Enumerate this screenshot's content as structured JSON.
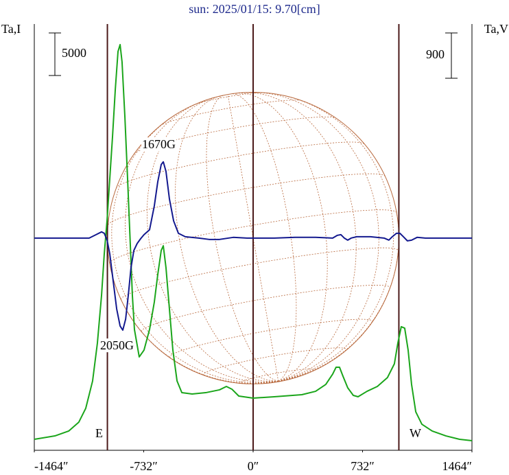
{
  "chart_data": {
    "type": "line",
    "title": "sun: 2025/01/15: 9.70[cm]",
    "y_label": "Ta,I",
    "y2_label": "Ta,V",
    "xlim": [
      -1464,
      1464
    ],
    "xticks": [
      {
        "value": -1464,
        "label": "-1464″"
      },
      {
        "value": -732,
        "label": "-732″"
      },
      {
        "value": 0,
        "label": "0″"
      },
      {
        "value": 732,
        "label": "732″"
      },
      {
        "value": 1464,
        "label": "1464″"
      }
    ],
    "ylim": [
      0,
      50000
    ],
    "y2lim": [
      -4200,
      4250
    ],
    "scale_bars": [
      {
        "value": 5000,
        "axis": "y"
      },
      {
        "value": 900,
        "axis": "y2"
      }
    ],
    "vlines": [
      {
        "x": -975,
        "label": "E"
      },
      {
        "x": 0
      },
      {
        "x": 975,
        "label": "W"
      }
    ],
    "vline_color": "#4a1818",
    "disk_color": "#b8683c",
    "annotations": [
      "1670G",
      "2050G"
    ],
    "series": [
      {
        "color": "#1aa51a",
        "axis": "y",
        "x": [
          -1464,
          -1326,
          -1234,
          -1166,
          -1120,
          -1074,
          -1042,
          -1014,
          -996,
          -977,
          -959,
          -941,
          -922,
          -904,
          -890,
          -877,
          -858,
          -840,
          -821,
          -808,
          -794,
          -762,
          -730,
          -693,
          -661,
          -638,
          -615,
          -601,
          -583,
          -560,
          -537,
          -509,
          -477,
          -408,
          -317,
          -225,
          -179,
          -142,
          -96,
          0,
          142,
          326,
          418,
          486,
          532,
          555,
          578,
          601,
          633,
          670,
          702,
          762,
          831,
          899,
          945,
          968,
          991,
          1014,
          1037,
          1060,
          1088,
          1129,
          1198,
          1290,
          1381,
          1464
        ],
        "values": [
          1210,
          1610,
          2180,
          3230,
          4840,
          8060,
          12500,
          18150,
          22980,
          27000,
          31850,
          36690,
          42340,
          46770,
          47580,
          45560,
          39110,
          31850,
          23790,
          18150,
          14110,
          10890,
          11690,
          14110,
          17340,
          20560,
          23390,
          23950,
          21370,
          16530,
          11690,
          8060,
          6690,
          6530,
          6690,
          7020,
          7420,
          7100,
          6290,
          6050,
          6210,
          6450,
          6850,
          7660,
          8870,
          9680,
          9680,
          8630,
          7260,
          6370,
          6210,
          6850,
          7420,
          8470,
          10080,
          12500,
          14440,
          14270,
          11690,
          7660,
          4440,
          2980,
          2180,
          1610,
          1210,
          1050
        ]
      },
      {
        "color": "#12188e",
        "axis": "y2",
        "x": [
          -1464,
          -1097,
          -1051,
          -1014,
          -996,
          -977,
          -959,
          -936,
          -913,
          -890,
          -872,
          -853,
          -835,
          -817,
          -798,
          -776,
          -753,
          -730,
          -693,
          -661,
          -638,
          -615,
          -601,
          -583,
          -560,
          -532,
          -500,
          -454,
          -363,
          -294,
          -225,
          -133,
          -41,
          142,
          280,
          418,
          532,
          564,
          587,
          610,
          633,
          656,
          693,
          785,
          876,
          908,
          931,
          959,
          982,
          1005,
          1032,
          1060,
          1097,
          1152,
          1464
        ],
        "values": [
          0,
          0,
          68,
          123,
          95,
          -41,
          -314,
          -859,
          -1405,
          -1746,
          -1828,
          -1610,
          -1132,
          -587,
          -246,
          -109,
          -14,
          68,
          164,
          641,
          1118,
          1459,
          1514,
          1323,
          777,
          341,
          95,
          27,
          0,
          -27,
          -27,
          14,
          0,
          0,
          14,
          14,
          0,
          55,
          68,
          0,
          -41,
          0,
          27,
          27,
          0,
          -41,
          27,
          95,
          95,
          27,
          -55,
          -41,
          14,
          0,
          0
        ]
      }
    ]
  }
}
